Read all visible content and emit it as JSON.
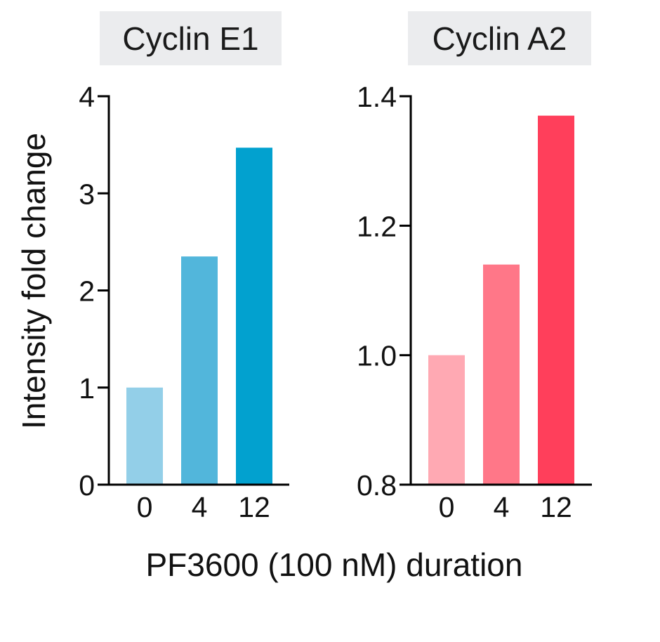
{
  "figure": {
    "ylabel": "Intensity fold change",
    "xlabel": "PF3600 (100 nM) duration"
  },
  "chart_data": [
    {
      "type": "bar",
      "title": "Cyclin E1",
      "categories": [
        "0",
        "4",
        "12"
      ],
      "values": [
        1.0,
        2.35,
        3.47
      ],
      "ylim": [
        0,
        4
      ],
      "yticks": [
        "0",
        "1",
        "2",
        "3",
        "4"
      ],
      "colors": [
        "#93cfe8",
        "#52b6db",
        "#02a1cf"
      ],
      "title_bg": "#ebecee",
      "grid": false
    },
    {
      "type": "bar",
      "title": "Cyclin A2",
      "categories": [
        "0",
        "4",
        "12"
      ],
      "values": [
        1.0,
        1.14,
        1.37
      ],
      "ylim": [
        0.8,
        1.4
      ],
      "yticks": [
        "0.8",
        "1.0",
        "1.2",
        "1.4"
      ],
      "colors": [
        "#ffa9b3",
        "#ff7788",
        "#ff3f5b"
      ],
      "title_bg": "#ebecee",
      "grid": false
    }
  ]
}
